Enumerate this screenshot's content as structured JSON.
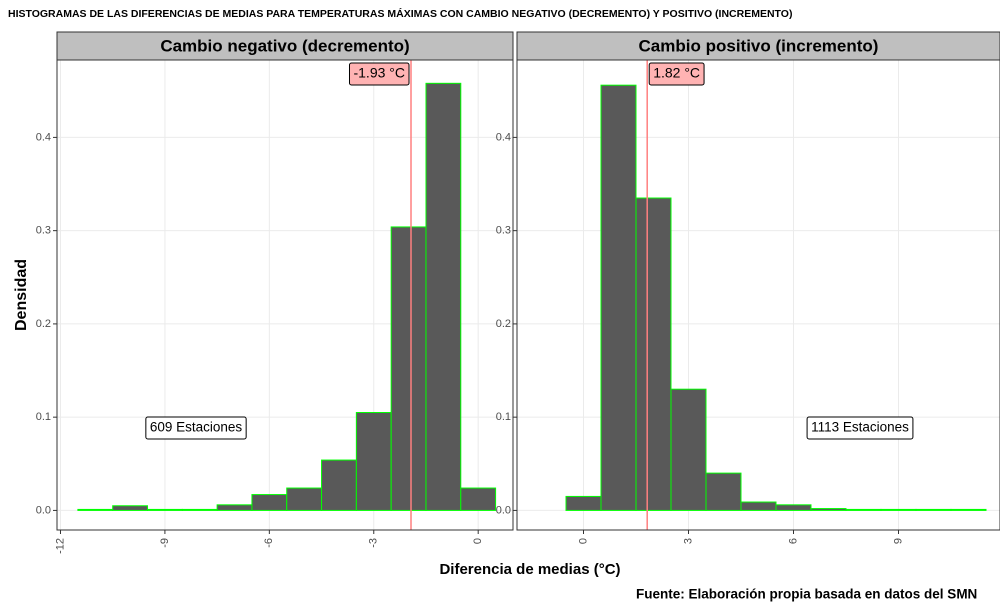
{
  "title": "HISTOGRAMAS DE LAS DIFERENCIAS DE MEDIAS PARA TEMPERATURAS MÁXIMAS CON CAMBIO NEGATIVO (DECREMENTO) Y POSITIVO (INCREMENTO)",
  "xlabel": "Diferencia de medias (°C)",
  "ylabel": "Densidad",
  "caption": "Fuente: Elaboración propia basada en datos del SMN",
  "chart_data": [
    {
      "type": "histogram",
      "title": "Cambio negativo (decremento)",
      "bins": [
        -11.5,
        -10.5,
        -9.5,
        -8.5,
        -7.5,
        -6.5,
        -5.5,
        -4.5,
        -3.5,
        -2.5,
        -1.5,
        -0.5,
        0.5
      ],
      "values": [
        0.001,
        0.005,
        0,
        0,
        0.006,
        0.017,
        0.024,
        0.054,
        0.105,
        0.304,
        0.458,
        0.024
      ],
      "color": "#595959",
      "edge_color": "#00ff00",
      "mean": -1.93,
      "mean_label": "-1.93  °C",
      "mean_color": "#ff8080",
      "annotation": "609 Estaciones",
      "xlim": [
        -12.1,
        1.0
      ],
      "xticks": [
        -12,
        -9,
        -6,
        -3,
        0
      ],
      "ylim": [
        -0.021,
        0.483
      ],
      "yticks": [
        {
          "value": 0,
          "label": "0.0"
        },
        0.1,
        0.2,
        0.3,
        0.4
      ],
      "grid": true
    },
    {
      "type": "histogram",
      "title": "Cambio positivo (incremento)",
      "bins": [
        -0.5,
        0.5,
        1.5,
        2.5,
        3.5,
        4.5,
        5.5,
        6.5,
        7.5,
        8.5,
        9.5,
        10.5,
        11.5
      ],
      "values": [
        0.015,
        0.456,
        0.335,
        0.13,
        0.04,
        0.009,
        0.006,
        0.002,
        0.001,
        0.0005,
        0.0003,
        0.0002
      ],
      "color": "#595959",
      "edge_color": "#00ff00",
      "mean": 1.82,
      "mean_label": "1.82  °C",
      "mean_color": "#ff8080",
      "annotation": "1113 Estaciones",
      "xlim": [
        -1.9,
        11.9
      ],
      "xticks": [
        0,
        3,
        6,
        9
      ],
      "ylim": [
        -0.021,
        0.483
      ],
      "yticks": [
        {
          "value": 0,
          "label": "0.0"
        },
        0.1,
        0.2,
        0.3,
        0.4
      ],
      "grid": true
    }
  ]
}
